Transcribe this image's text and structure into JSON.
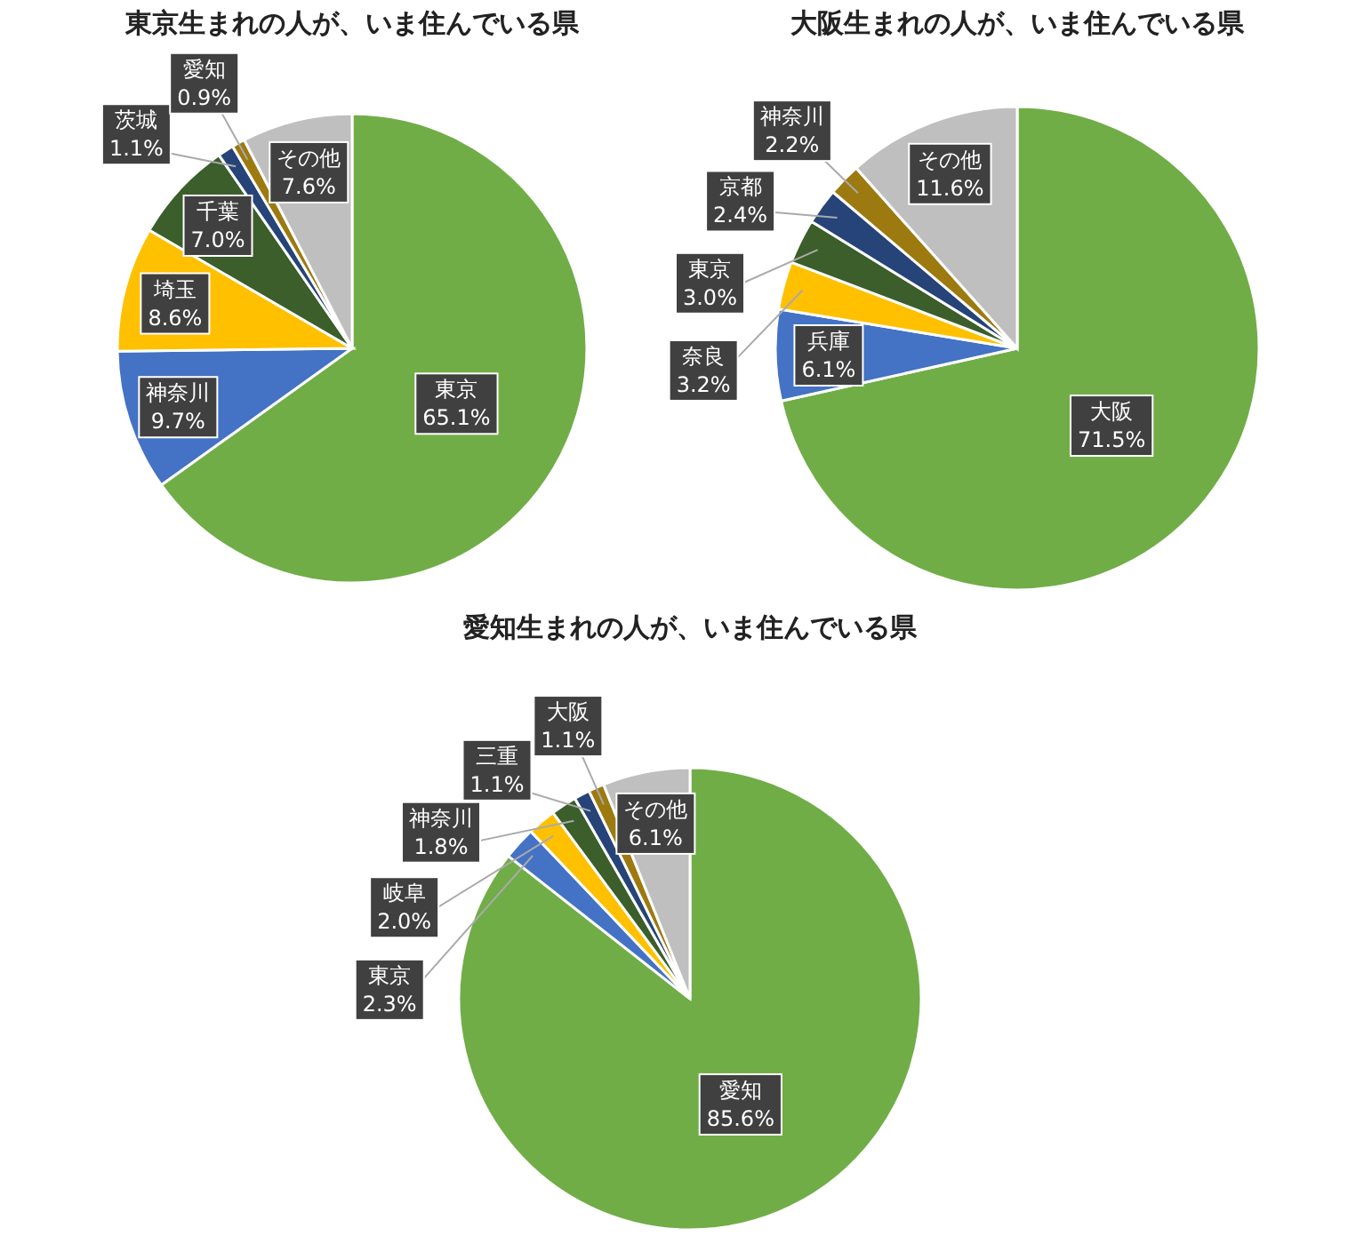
{
  "chart_data": [
    {
      "type": "pie",
      "title": "東京生まれの人が、いま住んでいる県",
      "categories": [
        "東京",
        "神奈川",
        "埼玉",
        "千葉",
        "茨城",
        "愛知",
        "その他"
      ],
      "values": [
        65.1,
        9.7,
        8.6,
        7.0,
        1.1,
        0.9,
        7.6
      ],
      "colors": [
        "#70ad47",
        "#4472c4",
        "#ffc000",
        "#3b5e2b",
        "#264478",
        "#9c7a10",
        "#bfbfbf"
      ],
      "value_labels": [
        "65.1%",
        "9.7%",
        "8.6%",
        "7.0%",
        "1.1%",
        "0.9%",
        "7.6%"
      ]
    },
    {
      "type": "pie",
      "title": "大阪生まれの人が、いま住んでいる県",
      "categories": [
        "大阪",
        "兵庫",
        "奈良",
        "東京",
        "京都",
        "神奈川",
        "その他"
      ],
      "values": [
        71.5,
        6.1,
        3.2,
        3.0,
        2.4,
        2.2,
        11.6
      ],
      "colors": [
        "#70ad47",
        "#4472c4",
        "#ffc000",
        "#3b5e2b",
        "#264478",
        "#9c7a10",
        "#bfbfbf"
      ],
      "value_labels": [
        "71.5%",
        "6.1%",
        "3.2%",
        "3.0%",
        "2.4%",
        "2.2%",
        "11.6%"
      ]
    },
    {
      "type": "pie",
      "title": "愛知生まれの人が、いま住んでいる県",
      "categories": [
        "愛知",
        "東京",
        "岐阜",
        "神奈川",
        "三重",
        "大阪",
        "その他"
      ],
      "values": [
        85.6,
        2.3,
        2.0,
        1.8,
        1.1,
        1.1,
        6.1
      ],
      "colors": [
        "#70ad47",
        "#4472c4",
        "#ffc000",
        "#3b5e2b",
        "#264478",
        "#9c7a10",
        "#bfbfbf"
      ],
      "value_labels": [
        "85.6%",
        "2.3%",
        "2.0%",
        "1.8%",
        "1.1%",
        "1.1%",
        "6.1%"
      ]
    }
  ]
}
